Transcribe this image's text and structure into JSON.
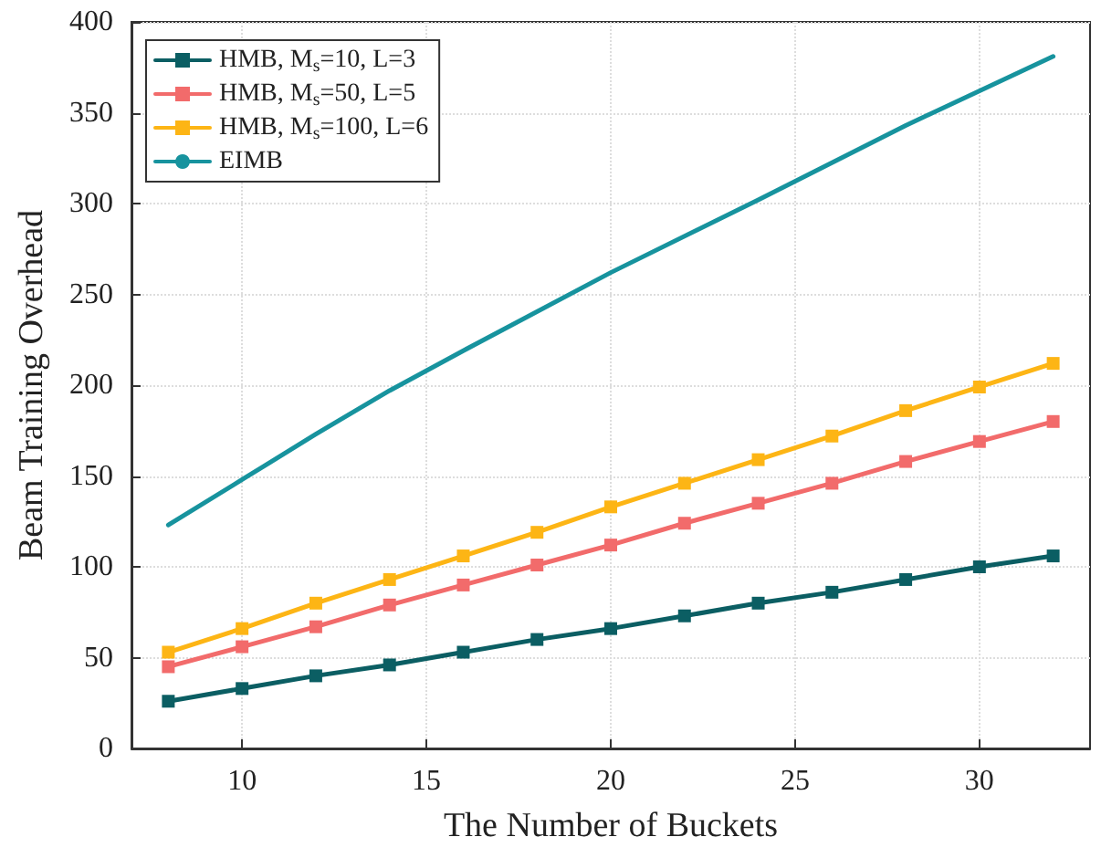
{
  "chart_data": {
    "type": "line",
    "xlabel": "The Number of Buckets",
    "ylabel": "Beam Training Overhead",
    "x": [
      8,
      10,
      12,
      14,
      16,
      18,
      20,
      22,
      24,
      26,
      28,
      30,
      32
    ],
    "series": [
      {
        "name": "HMB, M$_{s}$=10, L=3",
        "color": "#0b5e63",
        "values": [
          26,
          33,
          40,
          46,
          53,
          60,
          66,
          73,
          80,
          86,
          93,
          100,
          106
        ]
      },
      {
        "name": "HMB, M$_{s}$=50, L=5",
        "color": "#f26b6b",
        "values": [
          45,
          56,
          67,
          79,
          90,
          101,
          112,
          124,
          135,
          146,
          158,
          169,
          180
        ]
      },
      {
        "name": "HMB, M$_{s}$=100, L=6",
        "color": "#fdb515",
        "values": [
          53,
          66,
          80,
          93,
          106,
          119,
          133,
          146,
          159,
          172,
          186,
          199,
          212
        ]
      },
      {
        "name": "EIMB",
        "color": "#17939e",
        "marker": "none",
        "x": [
          8,
          10,
          12,
          14,
          16,
          20,
          24,
          28,
          32
        ],
        "values": [
          123,
          148,
          173,
          197,
          219,
          262,
          302,
          343,
          381
        ]
      }
    ],
    "xlim": [
      7,
      33
    ],
    "xticks": [
      10,
      15,
      20,
      25,
      30
    ],
    "ylim": [
      0,
      400
    ],
    "yticks": [
      0,
      50,
      100,
      150,
      200,
      250,
      300,
      350,
      400
    ],
    "grid": true,
    "legend": "top left",
    "marker": "square",
    "line_style": "solid"
  }
}
